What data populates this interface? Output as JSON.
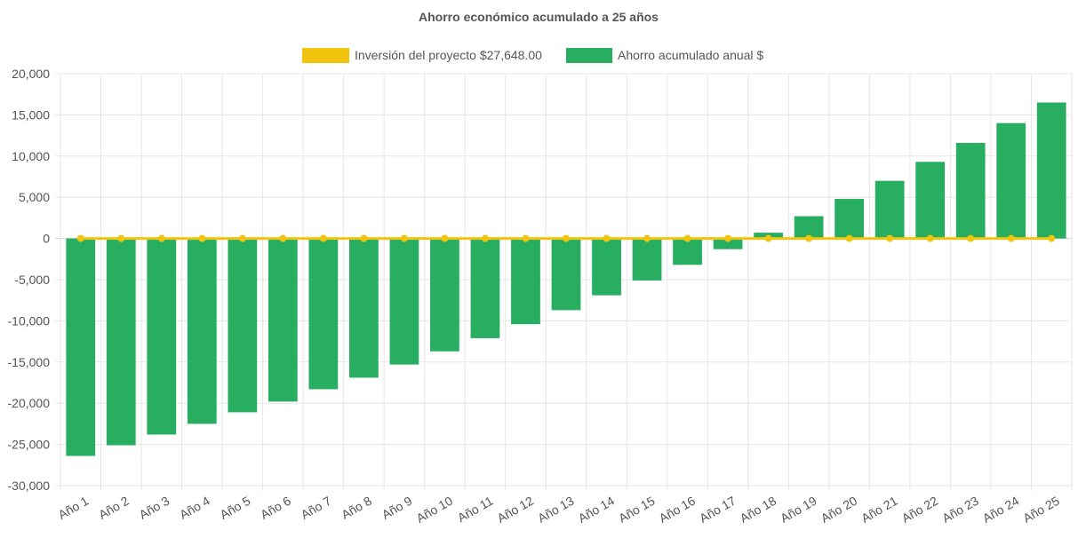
{
  "chart_data": {
    "type": "bar",
    "title": "Ahorro económico acumulado a 25 años",
    "categories": [
      "Año 1",
      "Año 2",
      "Año 3",
      "Año 4",
      "Año 5",
      "Año 6",
      "Año 7",
      "Año 8",
      "Año 9",
      "Año 10",
      "Año 11",
      "Año 12",
      "Año 13",
      "Año 14",
      "Año 15",
      "Año 16",
      "Año 17",
      "Año 18",
      "Año 19",
      "Año 20",
      "Año 21",
      "Año 22",
      "Año 23",
      "Año 24",
      "Año 25"
    ],
    "series": [
      {
        "name": "Inversión del proyecto $27,648.00",
        "type": "line",
        "color": "#f1c40f",
        "values": [
          0,
          0,
          0,
          0,
          0,
          0,
          0,
          0,
          0,
          0,
          0,
          0,
          0,
          0,
          0,
          0,
          0,
          0,
          0,
          0,
          0,
          0,
          0,
          0,
          0
        ]
      },
      {
        "name": "Ahorro acumulado anual $",
        "type": "bar",
        "color": "#27ae60",
        "values": [
          -26400,
          -25100,
          -23800,
          -22500,
          -21100,
          -19800,
          -18300,
          -16900,
          -15300,
          -13700,
          -12100,
          -10400,
          -8700,
          -6900,
          -5100,
          -3200,
          -1300,
          700,
          2700,
          4800,
          7000,
          9300,
          11600,
          14000,
          16500
        ]
      }
    ],
    "ylim": [
      -30000,
      20000
    ],
    "yticks": [
      20000,
      15000,
      10000,
      5000,
      0,
      -5000,
      -10000,
      -15000,
      -20000,
      -25000,
      -30000
    ],
    "ytick_labels": [
      "20,000",
      "15,000",
      "10,000",
      "5,000",
      "0",
      "-5,000",
      "-10,000",
      "-15,000",
      "-20,000",
      "-25,000",
      "-30,000"
    ],
    "grid": true,
    "legend_position": "top-center",
    "xlabel": "",
    "ylabel": ""
  }
}
